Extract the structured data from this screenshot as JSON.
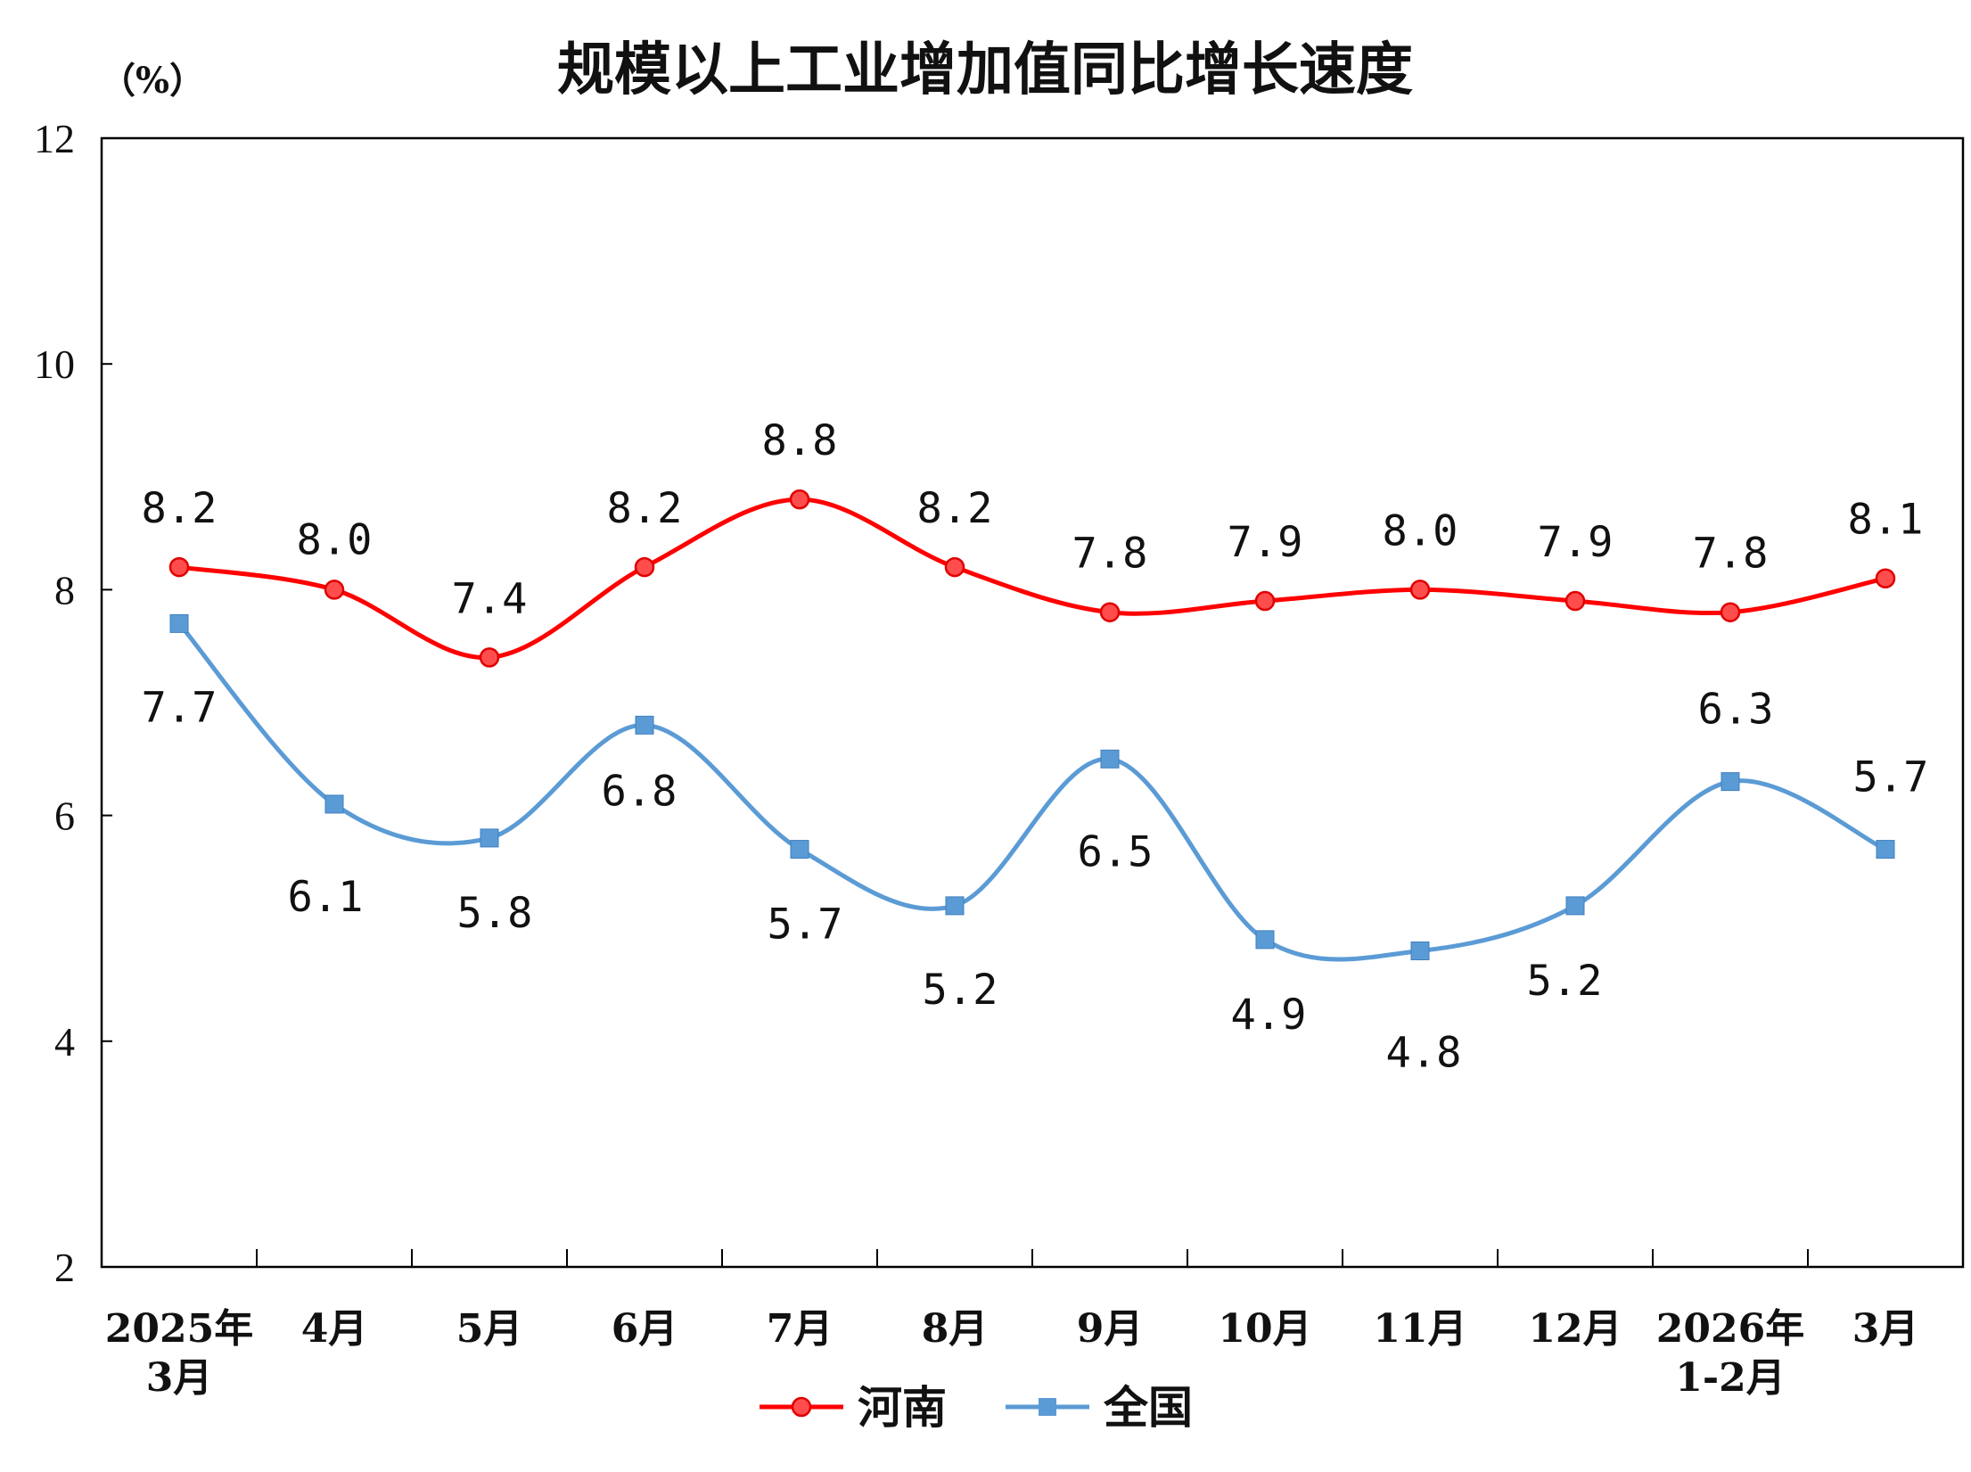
{
  "chart_data": {
    "type": "line",
    "title": "规模以上工业增加值同比增长速度",
    "unit_label": "（%）",
    "ylim": [
      2,
      12
    ],
    "yticks": [
      "2",
      "4",
      "6",
      "8",
      "10",
      "12"
    ],
    "categories": [
      [
        "2025年",
        "3月"
      ],
      [
        "4月"
      ],
      [
        "5月"
      ],
      [
        "6月"
      ],
      [
        "7月"
      ],
      [
        "8月"
      ],
      [
        "9月"
      ],
      [
        "10月"
      ],
      [
        "11月"
      ],
      [
        "12月"
      ],
      [
        "2026年",
        "1-2月"
      ],
      [
        "3月"
      ]
    ],
    "series": [
      {
        "name": "河南",
        "color": "#ff0000",
        "marker": "circle",
        "values": [
          8.2,
          8.0,
          7.4,
          8.2,
          8.8,
          8.2,
          7.8,
          7.9,
          8.0,
          7.9,
          7.8,
          8.1
        ],
        "labels": [
          "8.2",
          "8.0",
          "7.4",
          "8.2",
          "8.8",
          "8.2",
          "7.8",
          "7.9",
          "8.0",
          "7.9",
          "7.8",
          "8.1"
        ]
      },
      {
        "name": "全国",
        "color": "#5b9bd5",
        "marker": "square",
        "values": [
          7.7,
          6.1,
          5.8,
          6.8,
          5.7,
          5.2,
          6.5,
          4.9,
          4.8,
          5.2,
          6.3,
          5.7
        ],
        "labels": [
          "7.7",
          "6.1",
          "5.8",
          "6.8",
          "5.7",
          "5.2",
          "6.5",
          "4.9",
          "4.8",
          "5.2",
          "6.3",
          "5.7"
        ]
      }
    ],
    "grid": false,
    "legend_position": "bottom-center"
  }
}
